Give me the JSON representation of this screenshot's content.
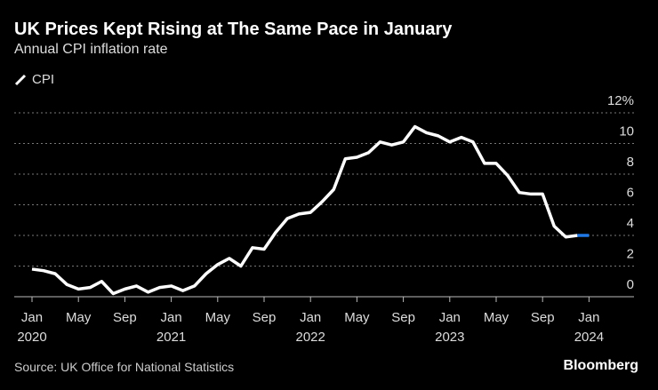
{
  "chart_data": {
    "type": "line",
    "title": "UK Prices Kept Rising at The Same Pace in January",
    "subtitle": "Annual CPI inflation rate",
    "source": "Source: UK Office for National Statistics",
    "brand": "Bloomberg",
    "legend": {
      "position": "top-left",
      "entries": [
        "CPI"
      ]
    },
    "ylim": [
      0,
      12
    ],
    "yticks": [
      "0",
      "2",
      "4",
      "6",
      "8",
      "10",
      "12%"
    ],
    "grid": true,
    "xticks": [
      {
        "month": "Jan",
        "year": "2020"
      },
      {
        "month": "May",
        "year": ""
      },
      {
        "month": "Sep",
        "year": ""
      },
      {
        "month": "Jan",
        "year": "2021"
      },
      {
        "month": "May",
        "year": ""
      },
      {
        "month": "Sep",
        "year": ""
      },
      {
        "month": "Jan",
        "year": "2022"
      },
      {
        "month": "May",
        "year": ""
      },
      {
        "month": "Sep",
        "year": ""
      },
      {
        "month": "Jan",
        "year": "2023"
      },
      {
        "month": "May",
        "year": ""
      },
      {
        "month": "Sep",
        "year": ""
      },
      {
        "month": "Jan",
        "year": "2024"
      }
    ],
    "x_start": "2020-01",
    "x_end": "2024-01",
    "series": [
      {
        "name": "CPI",
        "color": "#ffffff",
        "highlight_color": "#1f78e6",
        "values": [
          1.8,
          1.7,
          1.5,
          0.8,
          0.5,
          0.6,
          1.0,
          0.2,
          0.5,
          0.7,
          0.3,
          0.6,
          0.7,
          0.4,
          0.7,
          1.5,
          2.1,
          2.5,
          2.0,
          3.2,
          3.1,
          4.2,
          5.1,
          5.4,
          5.5,
          6.2,
          7.0,
          9.0,
          9.1,
          9.4,
          10.1,
          9.9,
          10.1,
          11.1,
          10.7,
          10.5,
          10.1,
          10.4,
          10.1,
          8.7,
          8.7,
          7.9,
          6.8,
          6.7,
          6.7,
          4.6,
          3.9,
          4.0,
          4.0
        ]
      }
    ]
  }
}
